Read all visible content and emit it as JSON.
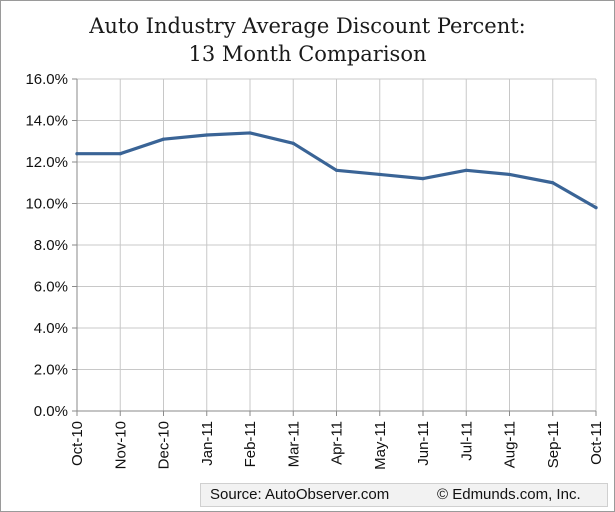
{
  "chart_data": {
    "type": "line",
    "title_lines": [
      "Auto Industry Average Discount Percent:",
      "13 Month Comparison"
    ],
    "categories": [
      "Oct-10",
      "Nov-10",
      "Dec-10",
      "Jan-11",
      "Feb-11",
      "Mar-11",
      "Apr-11",
      "May-11",
      "Jun-11",
      "Jul-11",
      "Aug-11",
      "Sep-11",
      "Oct-11"
    ],
    "series": [
      {
        "values": [
          12.4,
          12.4,
          13.1,
          13.3,
          13.4,
          12.9,
          11.6,
          11.4,
          11.2,
          11.6,
          11.4,
          11.0,
          9.8
        ]
      }
    ],
    "ylim": [
      0,
      16
    ],
    "y_ticks": [
      "0.0%",
      "2.0%",
      "4.0%",
      "6.0%",
      "8.0%",
      "10.0%",
      "12.0%",
      "14.0%",
      "16.0%"
    ],
    "y_tick_values": [
      0,
      2,
      4,
      6,
      8,
      10,
      12,
      14,
      16
    ],
    "grid": true,
    "line_color": "#3a6496",
    "grid_color": "#c8c8c8"
  },
  "source": {
    "text": "Source: AutoObserver.com",
    "copyright": "© Edmunds.com, Inc."
  }
}
